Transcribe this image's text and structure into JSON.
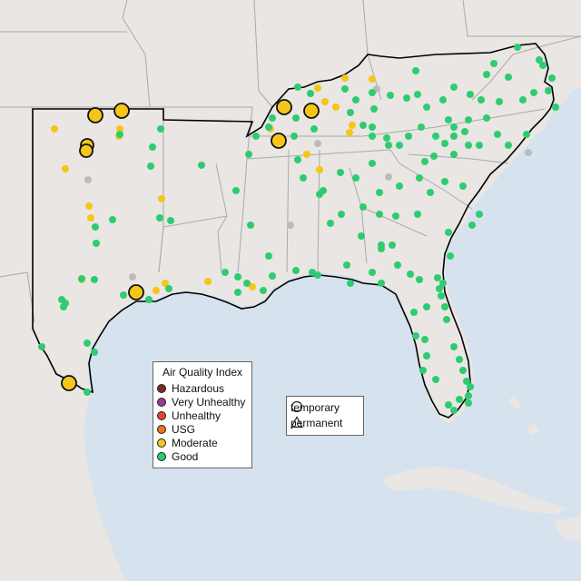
{
  "legend": {
    "title": "Air Quality Index",
    "categories": [
      {
        "label": "Hazardous",
        "color": "#7e2b2b"
      },
      {
        "label": "Very Unhealthy",
        "color": "#8f3f97"
      },
      {
        "label": "Unhealthy",
        "color": "#e8432e"
      },
      {
        "label": "USG",
        "color": "#e8731e"
      },
      {
        "label": "Moderate",
        "color": "#f5c518"
      },
      {
        "label": "Good",
        "color": "#2ecc71"
      }
    ]
  },
  "shape_legend": {
    "temporary_label": "temporary",
    "permanent_label": "permanent"
  },
  "colors": {
    "water": "#d6e2ee",
    "land": "#e9e6e3",
    "region_border": "#000000",
    "state_border": "#aaaaaa",
    "no_data": "#bbbbbb"
  }
}
